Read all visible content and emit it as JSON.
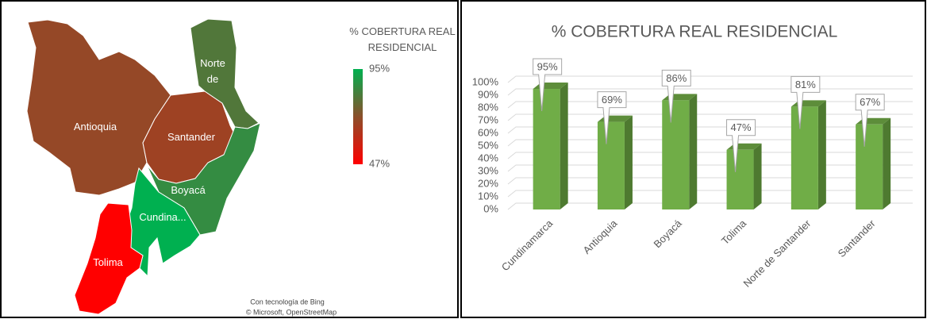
{
  "chart_data": [
    {
      "type": "map",
      "title": "% COBERTURA REAL RESIDENCIAL",
      "regions": [
        "Antioquia",
        "Santander",
        "Norte de",
        "Boyacá",
        "Cundina...",
        "Tolima"
      ],
      "values": [
        69,
        67,
        81,
        86,
        95,
        47
      ],
      "legend_ticks": [
        {
          "value": 95,
          "label": "95%"
        },
        {
          "value": 47,
          "label": "47%"
        }
      ],
      "colors": [
        "#ff0000",
        "#8b4f2a",
        "#00b050"
      ],
      "credits": [
        "Con tecnología de Bing",
        "© Microsoft, OpenStreetMap"
      ]
    },
    {
      "type": "bar",
      "title": "% COBERTURA REAL RESIDENCIAL",
      "categories": [
        "Cundinamarca",
        "Antioquia",
        "Boyacá",
        "Tolima",
        "Norte de Santander",
        "Santander"
      ],
      "values": [
        95,
        69,
        86,
        47,
        81,
        67
      ],
      "value_labels": [
        "95%",
        "69%",
        "86%",
        "47%",
        "81%",
        "67%"
      ],
      "color": "#70ad47",
      "ylim": [
        0,
        100
      ],
      "yticks": [
        {
          "value": 0,
          "label": "0%"
        },
        {
          "value": 10,
          "label": "10%"
        },
        {
          "value": 20,
          "label": "20%"
        },
        {
          "value": 30,
          "label": "30%"
        },
        {
          "value": 40,
          "label": "40%"
        },
        {
          "value": 50,
          "label": "50%"
        },
        {
          "value": 60,
          "label": "60%"
        },
        {
          "value": 70,
          "label": "70%"
        },
        {
          "value": 80,
          "label": "80%"
        },
        {
          "value": 90,
          "label": "90%"
        },
        {
          "value": 100,
          "label": "100%"
        }
      ],
      "grid": true
    }
  ]
}
